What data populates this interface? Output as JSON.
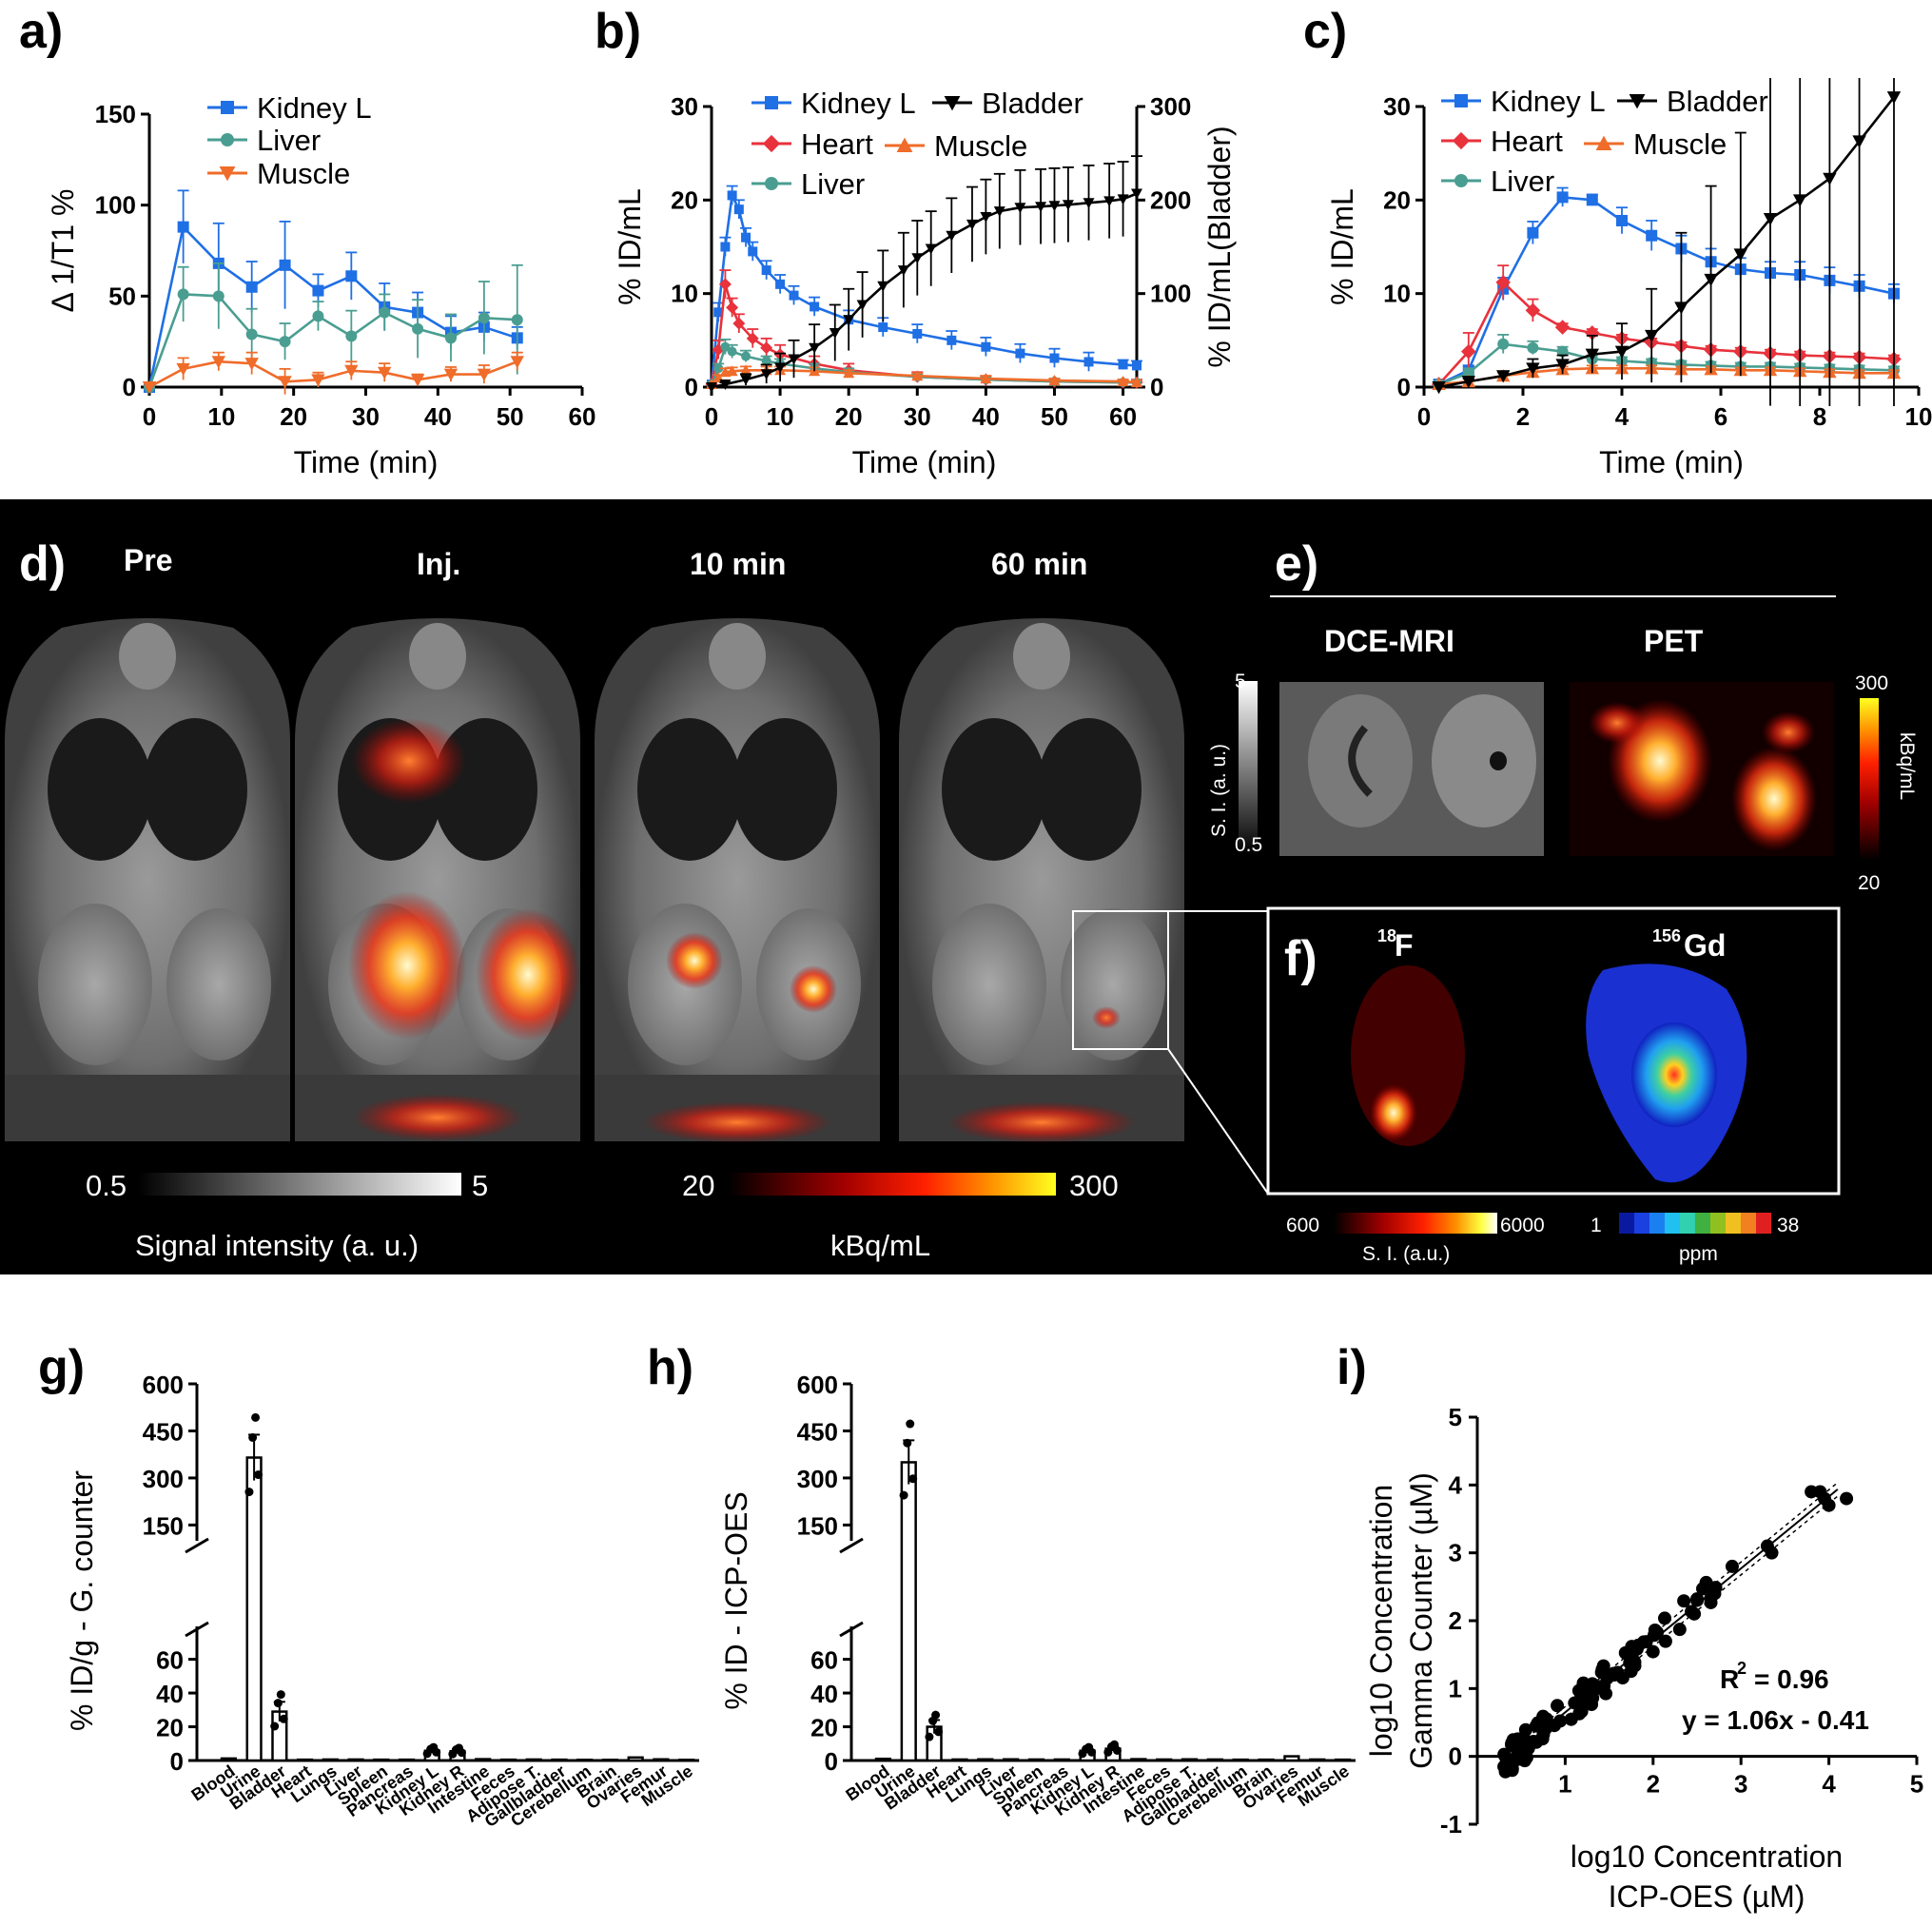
{
  "panel_letters": {
    "a": "a)",
    "b": "b)",
    "c": "c)",
    "d": "d)",
    "e": "e)",
    "f": "f)",
    "g": "g)",
    "h": "h)",
    "i": "i)"
  },
  "colors": {
    "kidney": "#1f6fe5",
    "liver": "#4a9e91",
    "muscle": "#ef6c2a",
    "heart": "#e8323c",
    "bladder": "#000000"
  },
  "chart_data": [
    {
      "id": "a",
      "type": "line",
      "xlabel": "Time (min)",
      "ylabel": "Δ 1/T1 %",
      "xlim": [
        0,
        60
      ],
      "ylim": [
        0,
        150
      ],
      "xticks": [
        0,
        10,
        20,
        30,
        40,
        50,
        60
      ],
      "yticks": [
        0,
        50,
        100,
        150
      ],
      "legend": "top-left",
      "series": [
        {
          "name": "Kidney L",
          "color": "#1f6fe5",
          "marker": "square",
          "x": [
            0,
            4.7,
            9.6,
            14.2,
            18.8,
            23.4,
            28,
            32.6,
            37.2,
            41.8,
            46.4,
            51
          ],
          "y": [
            0,
            88,
            68,
            55,
            67,
            53,
            61,
            44,
            41,
            30,
            33,
            27
          ],
          "err": [
            0,
            20,
            22,
            14,
            24,
            9,
            13,
            13,
            11,
            9,
            8,
            6
          ]
        },
        {
          "name": "Liver",
          "color": "#4a9e91",
          "marker": "circle",
          "x": [
            0,
            4.7,
            9.6,
            14.2,
            18.8,
            23.4,
            28,
            32.6,
            37.2,
            41.8,
            46.4,
            51
          ],
          "y": [
            0,
            51,
            50,
            29,
            25,
            39,
            28,
            41,
            32,
            27,
            38,
            37
          ],
          "err": [
            0,
            15,
            18,
            14,
            10,
            8,
            14,
            10,
            16,
            13,
            20,
            30
          ]
        },
        {
          "name": "Muscle",
          "color": "#ef6c2a",
          "marker": "triangle-down",
          "x": [
            0,
            4.7,
            9.6,
            14.2,
            18.8,
            23.4,
            28,
            32.6,
            37.2,
            41.8,
            46.4,
            51
          ],
          "y": [
            0,
            10,
            14,
            13,
            3,
            4,
            9,
            8,
            4,
            7,
            7,
            14
          ],
          "err": [
            0,
            6,
            5,
            6,
            7,
            4,
            5,
            5,
            3,
            4,
            5,
            5
          ]
        }
      ]
    },
    {
      "id": "b",
      "type": "line",
      "xlabel": "Time (min)",
      "ylabel": "% ID/mL",
      "y2label": "% ID/mL(Bladder)",
      "xlim": [
        0,
        62
      ],
      "ylim": [
        0,
        30
      ],
      "y2lim": [
        0,
        300
      ],
      "xticks": [
        0,
        10,
        20,
        30,
        40,
        50,
        60
      ],
      "yticks": [
        0,
        10,
        20,
        30
      ],
      "y2ticks": [
        0,
        100,
        200,
        300
      ],
      "legend": "top",
      "series": [
        {
          "name": "Kidney L",
          "color": "#1f6fe5",
          "marker": "square",
          "axis": "left",
          "x": [
            0,
            1,
            2,
            3,
            4,
            5,
            6,
            8,
            10,
            12,
            15,
            20,
            25,
            30,
            35,
            40,
            45,
            50,
            55,
            60,
            62
          ],
          "y": [
            0.3,
            8,
            15,
            20.5,
            19,
            16,
            14.5,
            12.5,
            11,
            9.8,
            8.6,
            7.2,
            6.4,
            5.7,
            5.0,
            4.3,
            3.6,
            3.1,
            2.7,
            2.4,
            2.3
          ],
          "err": [
            0,
            1,
            1,
            1,
            1,
            1,
            1,
            1,
            1,
            1,
            1,
            1,
            1,
            1,
            1,
            1,
            1,
            1,
            1,
            0.5,
            0.5
          ]
        },
        {
          "name": "Heart",
          "color": "#e8323c",
          "marker": "diamond",
          "axis": "left",
          "x": [
            0,
            1,
            2,
            3,
            4,
            6,
            8,
            10,
            15,
            20,
            30,
            40,
            50,
            60,
            62
          ],
          "y": [
            0.3,
            4,
            11,
            8.5,
            6.8,
            5.2,
            4.2,
            3.5,
            2.5,
            1.8,
            1.1,
            0.8,
            0.6,
            0.5,
            0.5
          ],
          "err": [
            0,
            1,
            1.5,
            1,
            1,
            1,
            1,
            1,
            0.8,
            0.7,
            0.5,
            0.4,
            0.3,
            0.3,
            0.3
          ]
        },
        {
          "name": "Liver",
          "color": "#4a9e91",
          "marker": "circle",
          "axis": "left",
          "x": [
            0,
            1,
            2,
            3,
            5,
            8,
            10,
            15,
            20,
            30,
            40,
            50,
            60,
            62
          ],
          "y": [
            0.3,
            2,
            4.3,
            3.8,
            3.3,
            2.8,
            2.5,
            2.0,
            1.6,
            1.1,
            0.8,
            0.6,
            0.5,
            0.5
          ],
          "err": [
            0,
            0.5,
            0.8,
            0.7,
            0.6,
            0.5,
            0.5,
            0.5,
            0.4,
            0.3,
            0.3,
            0.3,
            0.2,
            0.2
          ]
        },
        {
          "name": "Muscle",
          "color": "#ef6c2a",
          "marker": "triangle-up",
          "axis": "left",
          "x": [
            0,
            1,
            2,
            3,
            5,
            8,
            10,
            15,
            20,
            30,
            40,
            50,
            60,
            62
          ],
          "y": [
            0.3,
            1,
            1.6,
            1.7,
            1.8,
            1.8,
            1.8,
            1.7,
            1.5,
            1.2,
            0.9,
            0.7,
            0.6,
            0.5
          ],
          "err": [
            0,
            0.3,
            0.4,
            0.4,
            0.4,
            0.4,
            0.4,
            0.4,
            0.3,
            0.3,
            0.3,
            0.2,
            0.2,
            0.2
          ]
        },
        {
          "name": "Bladder",
          "color": "#000000",
          "marker": "triangle-down",
          "axis": "right",
          "x": [
            0,
            2,
            5,
            8,
            10,
            12,
            15,
            18,
            20,
            22,
            25,
            28,
            30,
            32,
            35,
            38,
            40,
            42,
            45,
            48,
            50,
            52,
            55,
            58,
            60,
            62
          ],
          "y": [
            0,
            3,
            8,
            14,
            21,
            30,
            42,
            58,
            72,
            88,
            108,
            125,
            138,
            148,
            162,
            174,
            182,
            188,
            192,
            193,
            194,
            195,
            197,
            199,
            201,
            207
          ],
          "err": [
            0,
            2,
            6,
            10,
            15,
            20,
            25,
            30,
            33,
            35,
            38,
            40,
            40,
            40,
            40,
            40,
            40,
            40,
            40,
            40,
            40,
            40,
            40,
            40,
            40,
            40
          ]
        }
      ]
    },
    {
      "id": "c",
      "type": "line",
      "xlabel": "Time (min)",
      "ylabel": "% ID/mL",
      "xlim": [
        0,
        10
      ],
      "ylim": [
        0,
        30
      ],
      "xticks": [
        0,
        2,
        4,
        6,
        8,
        10
      ],
      "yticks": [
        0,
        10,
        20,
        30
      ],
      "legend": "top",
      "series": [
        {
          "name": "Kidney L",
          "color": "#1f6fe5",
          "marker": "square",
          "x": [
            0.3,
            0.9,
            1.6,
            2.2,
            2.8,
            3.4,
            4.0,
            4.6,
            5.2,
            5.8,
            6.4,
            7.0,
            7.6,
            8.2,
            8.8,
            9.5
          ],
          "y": [
            0.3,
            1.8,
            10.5,
            16.5,
            20.3,
            20,
            17.8,
            16.2,
            14.8,
            13.4,
            12.6,
            12.2,
            12,
            11.4,
            10.8,
            10.0
          ],
          "err": [
            0.2,
            0.5,
            1.2,
            1.2,
            1,
            0.6,
            1.4,
            1.6,
            1.4,
            1.4,
            1.2,
            1.2,
            1.4,
            1.4,
            1.2,
            1.0
          ]
        },
        {
          "name": "Heart",
          "color": "#e8323c",
          "marker": "diamond",
          "x": [
            0.3,
            0.9,
            1.6,
            2.2,
            2.8,
            3.4,
            4.0,
            4.6,
            5.2,
            5.8,
            6.4,
            7.0,
            7.6,
            8.2,
            8.8,
            9.5
          ],
          "y": [
            0.3,
            3.8,
            11.2,
            8.2,
            6.4,
            5.8,
            5.2,
            4.8,
            4.4,
            4.0,
            3.8,
            3.6,
            3.4,
            3.3,
            3.2,
            3.0
          ],
          "err": [
            0.2,
            2,
            1.8,
            1.2,
            0.4,
            0.4,
            0.4,
            0.4,
            0.4,
            0.4,
            0.4,
            0.4,
            0.4,
            0.4,
            0.4,
            0.4
          ]
        },
        {
          "name": "Liver",
          "color": "#4a9e91",
          "marker": "circle",
          "x": [
            0.3,
            0.9,
            1.6,
            2.2,
            2.8,
            3.4,
            4.0,
            4.6,
            5.2,
            5.8,
            6.4,
            7.0,
            7.6,
            8.2,
            8.8,
            9.5
          ],
          "y": [
            0.3,
            1.5,
            4.6,
            4.2,
            3.8,
            3.0,
            2.8,
            2.6,
            2.4,
            2.3,
            2.2,
            2.2,
            2.1,
            2.0,
            1.9,
            1.8
          ],
          "err": [
            0.2,
            0.5,
            1,
            0.7,
            0.5,
            0.4,
            0.4,
            0.4,
            0.4,
            0.4,
            0.4,
            0.4,
            0.4,
            0.4,
            0.4,
            0.4
          ]
        },
        {
          "name": "Muscle",
          "color": "#ef6c2a",
          "marker": "triangle-up",
          "x": [
            0.3,
            0.9,
            1.6,
            2.2,
            2.8,
            3.4,
            4.0,
            4.6,
            5.2,
            5.8,
            6.4,
            7.0,
            7.6,
            8.2,
            8.8,
            9.5
          ],
          "y": [
            0.3,
            0.6,
            1.2,
            1.6,
            1.9,
            2.0,
            2.0,
            2.0,
            1.9,
            1.9,
            1.8,
            1.8,
            1.7,
            1.6,
            1.5,
            1.5
          ],
          "err": [
            0.2,
            0.3,
            0.3,
            0.3,
            0.3,
            0.3,
            0.3,
            0.3,
            0.3,
            0.3,
            0.3,
            0.3,
            0.3,
            0.3,
            0.3,
            0.3
          ]
        },
        {
          "name": "Bladder",
          "color": "#000000",
          "marker": "triangle-down",
          "x": [
            0.3,
            0.9,
            1.6,
            2.2,
            2.8,
            3.4,
            4.0,
            4.6,
            5.2,
            5.8,
            6.4,
            7.0,
            7.6,
            8.2,
            8.8,
            9.5
          ],
          "y": [
            0,
            0.6,
            1.2,
            2.0,
            2.4,
            3.5,
            3.8,
            5.5,
            8.5,
            11.5,
            14.2,
            18.0,
            20,
            22.3,
            26.3,
            31
          ],
          "err": [
            0,
            0.3,
            0.5,
            1,
            1,
            2,
            3,
            5,
            8,
            10,
            13,
            20,
            28,
            32,
            35,
            40
          ]
        }
      ]
    },
    {
      "id": "g",
      "type": "bar",
      "ylabel": "% ID/g - G. counter",
      "categories": [
        "Blood",
        "Urine",
        "Bladder",
        "Heart",
        "Lungs",
        "Liver",
        "Spleen",
        "Pancreas",
        "Kidney L",
        "Kidney R",
        "Intestine",
        "Feces",
        "Adipose T.",
        "Gallbladder",
        "Cerebellum",
        "Brain",
        "Ovaries",
        "Femur",
        "Muscle"
      ],
      "values": [
        1.2,
        365,
        29,
        0.5,
        0.6,
        0.6,
        0.5,
        0.5,
        5.8,
        5.5,
        0.8,
        0.5,
        0.6,
        0.5,
        0.4,
        0.4,
        1.8,
        0.7,
        0.4
      ],
      "yticks_lower": [
        0,
        20,
        40,
        60
      ],
      "yticks_upper": [
        150,
        300,
        450,
        600
      ],
      "broken_axis": true
    },
    {
      "id": "h",
      "type": "bar",
      "ylabel": "% ID - ICP-OES",
      "categories": [
        "Blood",
        "Urine",
        "Bladder",
        "Heart",
        "Lungs",
        "Liver",
        "Spleen",
        "Pancreas",
        "Kidney L",
        "Kidney R",
        "Intestine",
        "Feces",
        "Adipose T.",
        "Gallbladder",
        "Cerebellum",
        "Brain",
        "Ovaries",
        "Femur",
        "Muscle"
      ],
      "values": [
        1.0,
        350,
        20,
        0.6,
        0.7,
        0.7,
        0.6,
        0.6,
        5.8,
        7.0,
        0.8,
        0.6,
        0.7,
        0.6,
        0.5,
        0.5,
        2.5,
        0.6,
        0.5
      ],
      "yticks_lower": [
        0,
        20,
        40,
        60
      ],
      "yticks_upper": [
        150,
        300,
        450,
        600
      ],
      "broken_axis": true
    },
    {
      "id": "i",
      "type": "scatter",
      "xlabel": "log10 Concentration\nICP-OES (µM)",
      "xlabel_lines": [
        "log10 Concentration",
        "ICP-OES (µM)"
      ],
      "ylabel_lines": [
        "log10 Concentration",
        "Gamma Counter (µM)"
      ],
      "xlim": [
        0,
        5
      ],
      "ylim": [
        -1,
        5
      ],
      "xticks": [
        1,
        2,
        3,
        4,
        5
      ],
      "yticks": [
        -1,
        0,
        1,
        2,
        3,
        4,
        5
      ],
      "r2_label": "R",
      "r2_value": "= 0.96",
      "equation": "y = 1.06x - 0.41",
      "fit": {
        "slope": 1.06,
        "intercept": -0.41
      }
    }
  ],
  "panel_d": {
    "timepoints": [
      "Pre",
      "Inj.",
      "10 min",
      "60 min"
    ],
    "mri_scale": {
      "min": "0.5",
      "max": "5",
      "label": "Signal intensity (a. u.)"
    },
    "pet_scale": {
      "min": "20",
      "max": "300",
      "label": "kBq/mL"
    }
  },
  "panel_e": {
    "titles": [
      "DCE-MRI",
      "PET"
    ],
    "mri_scale": {
      "max": "5",
      "min": "0.5",
      "label": "S. I. (a. u.)"
    },
    "pet_scale": {
      "max": "300",
      "min": "20",
      "label": "kBq/mL"
    }
  },
  "panel_f": {
    "f18_sup": "18",
    "f18_el": "F",
    "gd_sup": "156",
    "gd_el": "Gd",
    "scale1": {
      "min": "600",
      "max": "6000",
      "label": "S. I. (a.u.)"
    },
    "scale2": {
      "min": "1",
      "max": "38",
      "label": "ppm"
    }
  }
}
